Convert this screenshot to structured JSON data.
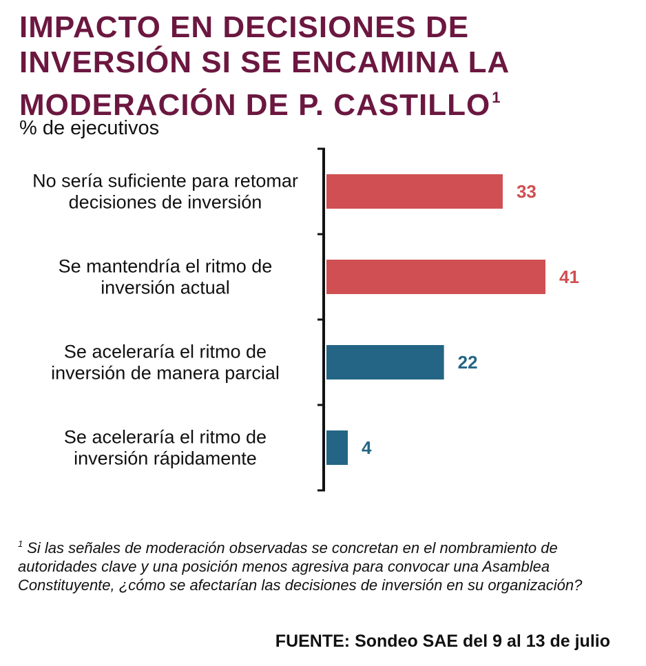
{
  "title": {
    "lines": [
      "IMPACTO EN DECISIONES DE",
      "INVERSIÓN SI SE ENCAMINA LA",
      "MODERACIÓN DE P. CASTILLO"
    ],
    "footnote_marker": "1"
  },
  "subtitle": "% de ejecutivos",
  "chart_data": {
    "type": "bar",
    "orientation": "horizontal",
    "unit": "% de ejecutivos",
    "categories": [
      [
        "No sería suficiente para retomar",
        "decisiones de inversión"
      ],
      [
        "Se mantendría el ritmo de",
        "inversión actual"
      ],
      [
        "Se aceleraría el ritmo de",
        "inversión de manera parcial"
      ],
      [
        "Se aceleraría el ritmo de",
        "inversión rápidamente"
      ]
    ],
    "values": [
      33,
      41,
      22,
      4
    ],
    "value_labels": [
      "33",
      "41",
      "22",
      "4"
    ],
    "colors": [
      "#cf4f52",
      "#cf4f52",
      "#246585",
      "#246585"
    ],
    "xlim": [
      0,
      41
    ],
    "grid": false,
    "legend": "none"
  },
  "footnote": {
    "marker": "1",
    "text": "Si las señales de moderación observadas se concretan en el nombramiento de autoridades clave y una posición menos agresiva para convocar una Asamblea Constituyente, ¿cómo se afectarían las decisiones de inversión en su organización?"
  },
  "source": "FUENTE: Sondeo SAE del 9 al 13 de julio"
}
